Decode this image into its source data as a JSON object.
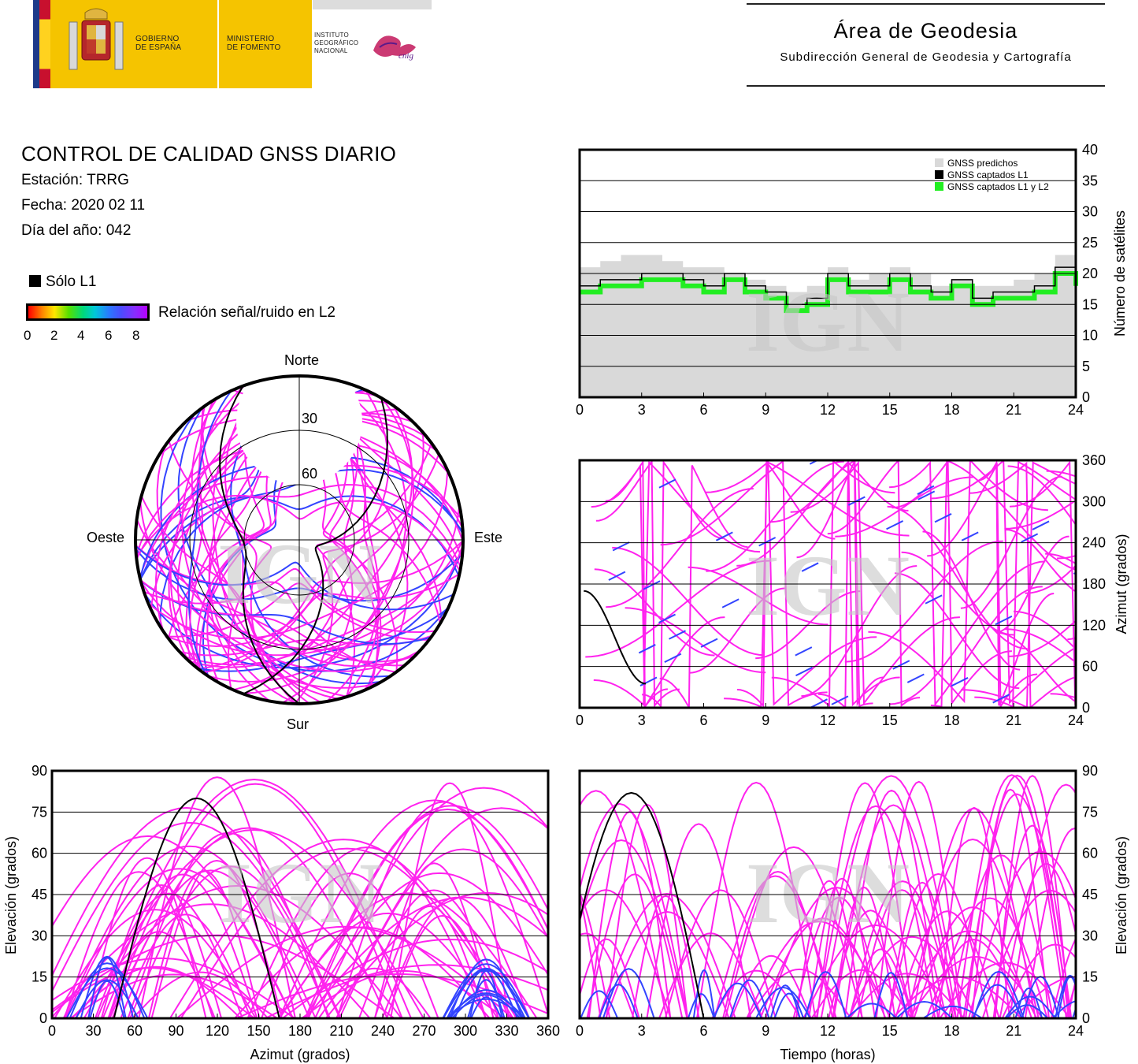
{
  "header": {
    "gov_line1": "GOBIERNO",
    "gov_line2": "DE ESPAÑA",
    "min_line1": "MINISTERIO",
    "min_line2": "DE FOMENTO",
    "ign_line1": "INSTITUTO",
    "ign_line2": "GEOGRÁFICO",
    "ign_line3": "NACIONAL",
    "cnig": "cnig",
    "area_title": "Área de Geodesia",
    "area_subtitle": "Subdirección General de Geodesia y Cartografía"
  },
  "report": {
    "title": "CONTROL DE CALIDAD GNSS DIARIO",
    "station": "Estación: TRRG",
    "date": "Fecha: 2020 02 11",
    "doy": "Día del año: 042"
  },
  "legend": {
    "solo_l1": "Sólo L1",
    "snr_label": "Relación señal/ruido en L2",
    "snr_ticks": [
      "0",
      "2",
      "4",
      "6",
      "8"
    ]
  },
  "colors": {
    "magenta": "#ff22ee",
    "blue": "#3344ff",
    "cyan": "#22ccff",
    "black": "#000000",
    "green": "#22ee22",
    "predicted_gray": "#d9d9d9",
    "watermark": "#c8c8c8"
  },
  "watermark": "IGN",
  "chart_data": [
    {
      "id": "satellite_count",
      "type": "area",
      "xlabel": "",
      "ylabel": "Número de satélites",
      "xlim": [
        0,
        24
      ],
      "ylim": [
        0,
        40
      ],
      "xticks": [
        0,
        3,
        6,
        9,
        12,
        15,
        18,
        21,
        24
      ],
      "yticks": [
        0,
        5,
        10,
        15,
        20,
        25,
        30,
        35,
        40
      ],
      "grid": true,
      "legend_position": "top-right",
      "series": [
        {
          "name": "GNSS predichos",
          "color": "#d9d9d9",
          "x": [
            0,
            1,
            2,
            3,
            4,
            5,
            6,
            7,
            8,
            9,
            10,
            11,
            12,
            13,
            14,
            15,
            16,
            17,
            18,
            19,
            20,
            21,
            22,
            23,
            24
          ],
          "values": [
            21,
            22,
            23,
            23,
            22,
            21,
            21,
            20,
            19,
            18,
            17,
            18,
            21,
            19,
            20,
            21,
            20,
            18,
            19,
            18,
            18,
            19,
            20,
            23,
            22
          ]
        },
        {
          "name": "GNSS captados L1",
          "color": "#000000",
          "x": [
            0,
            1,
            2,
            3,
            4,
            5,
            6,
            7,
            8,
            9,
            10,
            11,
            12,
            13,
            14,
            15,
            16,
            17,
            18,
            19,
            20,
            21,
            22,
            23,
            24
          ],
          "values": [
            18,
            19,
            19,
            20,
            20,
            19,
            18,
            20,
            18,
            17,
            15,
            16,
            20,
            18,
            18,
            20,
            18,
            17,
            19,
            16,
            17,
            17,
            18,
            21,
            19
          ]
        },
        {
          "name": "GNSS captados L1 y L2",
          "color": "#22ee22",
          "x": [
            0,
            1,
            2,
            3,
            4,
            5,
            6,
            7,
            8,
            9,
            10,
            11,
            12,
            13,
            14,
            15,
            16,
            17,
            18,
            19,
            20,
            21,
            22,
            23,
            24
          ],
          "values": [
            17,
            18,
            18,
            19,
            19,
            18,
            17,
            19,
            17,
            16,
            14,
            15,
            19,
            17,
            17,
            19,
            17,
            16,
            18,
            15,
            16,
            16,
            17,
            20,
            18
          ]
        }
      ]
    },
    {
      "id": "skyplot",
      "type": "scatter",
      "title": "",
      "directions": {
        "north": "Norte",
        "south": "Sur",
        "east": "Este",
        "west": "Oeste"
      },
      "elevation_rings": [
        30,
        60
      ],
      "note": ""
    },
    {
      "id": "azimuth_time",
      "type": "scatter",
      "xlabel": "",
      "ylabel": "Azimut (grados)",
      "xlim": [
        0,
        24
      ],
      "ylim": [
        0,
        360
      ],
      "xticks": [
        0,
        3,
        6,
        9,
        12,
        15,
        18,
        21,
        24
      ],
      "yticks": [
        0,
        60,
        120,
        180,
        240,
        300,
        360
      ],
      "grid": true
    },
    {
      "id": "elevation_azimuth",
      "type": "scatter",
      "xlabel": "Azimut (grados)",
      "ylabel": "Elevación (grados)",
      "xlim": [
        0,
        360
      ],
      "ylim": [
        0,
        90
      ],
      "xticks": [
        0,
        30,
        60,
        90,
        120,
        150,
        180,
        210,
        240,
        270,
        300,
        330,
        360
      ],
      "yticks": [
        0,
        15,
        30,
        45,
        60,
        75,
        90
      ],
      "grid": true
    },
    {
      "id": "elevation_time",
      "type": "scatter",
      "xlabel": "Tiempo (horas)",
      "ylabel": "Elevación (grados)",
      "xlim": [
        0,
        24
      ],
      "ylim": [
        0,
        90
      ],
      "xticks": [
        0,
        3,
        6,
        9,
        12,
        15,
        18,
        21,
        24
      ],
      "yticks": [
        0,
        15,
        30,
        45,
        60,
        75,
        90
      ],
      "grid": true
    }
  ]
}
